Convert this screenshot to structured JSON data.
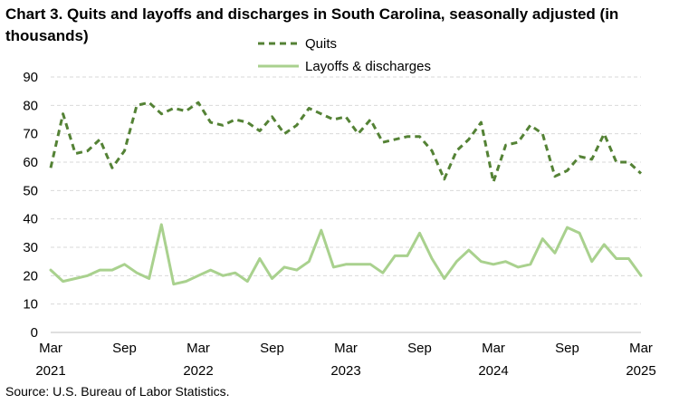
{
  "title": "Chart 3. Quits and layoffs and discharges in South Carolina, seasonally adjusted (in thousands)",
  "source": "Source: U.S. Bureau of Labor Statistics.",
  "chart_data": {
    "type": "line",
    "title": "Chart 3. Quits and layoffs and discharges in South Carolina, seasonally adjusted (in thousands)",
    "ylim": [
      0,
      90
    ],
    "yticks": [
      0,
      10,
      20,
      30,
      40,
      50,
      60,
      70,
      80,
      90
    ],
    "grid": true,
    "legend_position": "top-center",
    "x": [
      "2021-03",
      "2021-04",
      "2021-05",
      "2021-06",
      "2021-07",
      "2021-08",
      "2021-09",
      "2021-10",
      "2021-11",
      "2021-12",
      "2022-01",
      "2022-02",
      "2022-03",
      "2022-04",
      "2022-05",
      "2022-06",
      "2022-07",
      "2022-08",
      "2022-09",
      "2022-10",
      "2022-11",
      "2022-12",
      "2023-01",
      "2023-02",
      "2023-03",
      "2023-04",
      "2023-05",
      "2023-06",
      "2023-07",
      "2023-08",
      "2023-09",
      "2023-10",
      "2023-11",
      "2023-12",
      "2024-01",
      "2024-02",
      "2024-03",
      "2024-04",
      "2024-05",
      "2024-06",
      "2024-07",
      "2024-08",
      "2024-09",
      "2024-10",
      "2024-11",
      "2024-12",
      "2025-01",
      "2025-02",
      "2025-03"
    ],
    "x_tick_labels": [
      {
        "index": 0,
        "month": "Mar",
        "year": "2021"
      },
      {
        "index": 6,
        "month": "Sep",
        "year": ""
      },
      {
        "index": 12,
        "month": "Mar",
        "year": "2022"
      },
      {
        "index": 18,
        "month": "Sep",
        "year": ""
      },
      {
        "index": 24,
        "month": "Mar",
        "year": "2023"
      },
      {
        "index": 30,
        "month": "Sep",
        "year": ""
      },
      {
        "index": 36,
        "month": "Mar",
        "year": "2024"
      },
      {
        "index": 42,
        "month": "Sep",
        "year": ""
      },
      {
        "index": 48,
        "month": "Mar",
        "year": "2025"
      }
    ],
    "series": [
      {
        "name": "Quits",
        "color": "#548235",
        "style": "dashed",
        "values": [
          58,
          77,
          63,
          64,
          68,
          58,
          64,
          80,
          81,
          77,
          79,
          78,
          81,
          74,
          73,
          75,
          74,
          71,
          76,
          70,
          73,
          79,
          77,
          75,
          76,
          70,
          75,
          67,
          68,
          69,
          69,
          64,
          54,
          64,
          68,
          74,
          53,
          66,
          67,
          73,
          70,
          55,
          57,
          62,
          61,
          70,
          60,
          60,
          56
        ]
      },
      {
        "name": "Layoffs & discharges",
        "color": "#a9d18e",
        "style": "solid",
        "values": [
          22,
          18,
          19,
          20,
          22,
          22,
          24,
          21,
          19,
          38,
          17,
          18,
          20,
          22,
          20,
          21,
          18,
          26,
          19,
          23,
          22,
          25,
          36,
          23,
          24,
          24,
          24,
          21,
          27,
          27,
          35,
          26,
          19,
          25,
          29,
          25,
          24,
          25,
          23,
          24,
          33,
          28,
          37,
          35,
          25,
          31,
          26,
          26,
          20
        ]
      }
    ]
  }
}
